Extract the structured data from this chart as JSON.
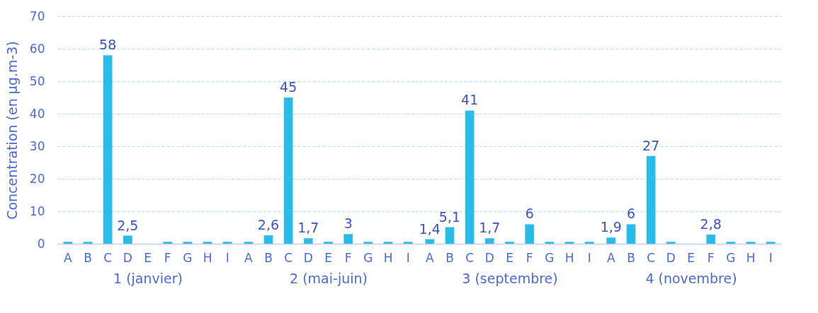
{
  "chart_data": [
    {
      "type": "bar",
      "categories": [
        "A",
        "B",
        "C",
        "D",
        "E",
        "F",
        "G",
        "H",
        "I"
      ],
      "xlabel": "1 (janvier)",
      "ylabel": "Concentration (en µg.m-3)",
      "color": "#29bce8",
      "values": [
        0.6,
        0.6,
        58,
        2.5,
        null,
        0.6,
        0.6,
        0.6,
        0.6
      ],
      "value_labels": [
        null,
        null,
        "58",
        "2,5",
        null,
        null,
        null,
        null,
        null
      ],
      "ylim": [
        0,
        70
      ],
      "yticks": [
        0,
        10,
        20,
        30,
        40,
        50,
        60,
        70
      ],
      "grid": "y"
    },
    {
      "type": "bar",
      "categories": [
        "A",
        "B",
        "C",
        "D",
        "E",
        "F",
        "G",
        "H",
        "I"
      ],
      "xlabel": "2 (mai-juin)",
      "color": "#29bce8",
      "values": [
        0.6,
        2.6,
        45,
        1.7,
        0.6,
        3,
        0.6,
        0.6,
        0.6
      ],
      "value_labels": [
        null,
        "2,6",
        "45",
        "1,7",
        null,
        "3",
        null,
        null,
        null
      ],
      "ylim": [
        0,
        70
      ],
      "yticks": [
        0,
        10,
        20,
        30,
        40,
        50,
        60,
        70
      ],
      "grid": "y",
      "tick_labels": "x"
    },
    {
      "type": "bar",
      "categories": [
        "A",
        "B",
        "C",
        "D",
        "E",
        "F",
        "G",
        "H",
        "I"
      ],
      "xlabel": "3 (septembre)",
      "color": "#29bce8",
      "values": [
        1.4,
        5.1,
        41,
        1.7,
        0.6,
        6,
        0.6,
        0.6,
        0.6
      ],
      "value_labels": [
        "1,4",
        "5,1",
        "41",
        "1,7",
        null,
        "6",
        null,
        null,
        null
      ],
      "ylim": [
        0,
        70
      ],
      "yticks": [
        0,
        10,
        20,
        30,
        40,
        50,
        60,
        70
      ],
      "grid": "y",
      "tick_labels": "x"
    },
    {
      "type": "bar",
      "categories": [
        "A",
        "B",
        "C",
        "D",
        "E",
        "F",
        "G",
        "H",
        "I"
      ],
      "xlabel": "4 (novembre)",
      "color": "#29bce8",
      "values": [
        1.9,
        6,
        27,
        0.6,
        null,
        2.8,
        0.6,
        0.6,
        0.6
      ],
      "value_labels": [
        "1,9",
        "6",
        "27",
        null,
        null,
        "2,8",
        null,
        null,
        null
      ],
      "ylim": [
        0,
        70
      ],
      "yticks": [
        0,
        10,
        20,
        30,
        40,
        50,
        60,
        70
      ],
      "grid": "y",
      "tick_labels": "x"
    }
  ]
}
